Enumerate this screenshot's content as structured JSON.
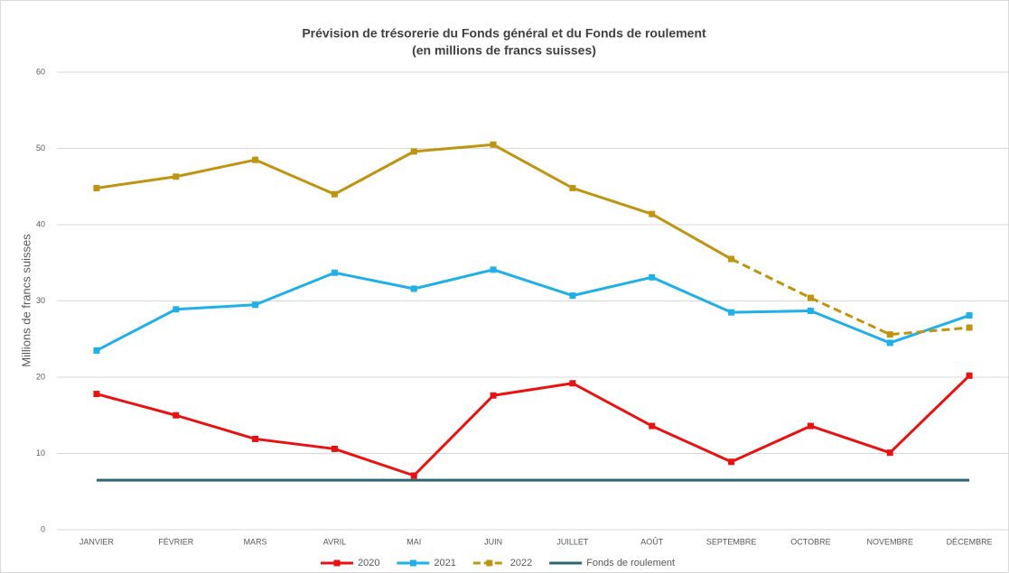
{
  "chart_data": {
    "type": "line",
    "title": "Prévision de trésorerie du Fonds général et du Fonds de roulement",
    "subtitle": "(en millions de francs suisses)",
    "y_label": "Millions de francs suisses",
    "categories": [
      "JANVIER",
      "FÉVRIER",
      "MARS",
      "AVRIL",
      "MAI",
      "JUIN",
      "JUILLET",
      "AOÛT",
      "SEPTEMBRE",
      "OCTOBRE",
      "NOVEMBRE",
      "DÉCEMBRE"
    ],
    "series": [
      {
        "name": "2020",
        "color": "#e81212",
        "marker": "square",
        "values": [
          17.8,
          15.0,
          11.9,
          10.6,
          7.1,
          17.6,
          19.2,
          13.6,
          8.9,
          13.6,
          10.1,
          20.2
        ]
      },
      {
        "name": "2021",
        "color": "#1fb0e8",
        "marker": "square",
        "values": [
          23.5,
          28.9,
          29.5,
          33.7,
          31.6,
          34.1,
          30.7,
          33.1,
          28.5,
          28.7,
          24.5,
          28.1
        ]
      },
      {
        "name": "2022",
        "color": "#bf9410",
        "marker": "square",
        "dash_from": 8,
        "values": [
          44.8,
          46.3,
          48.5,
          44.0,
          49.6,
          50.5,
          44.8,
          41.4,
          35.5,
          30.4,
          25.6,
          26.5
        ]
      },
      {
        "name": "Fonds de roulement",
        "color": "#2e6670",
        "marker": "none",
        "values": [
          6.5,
          6.5,
          6.5,
          6.5,
          6.5,
          6.5,
          6.5,
          6.5,
          6.5,
          6.5,
          6.5,
          6.5
        ]
      }
    ],
    "ylim": [
      0,
      60
    ],
    "yticks": [
      0,
      10,
      20,
      30,
      40,
      50,
      60
    ],
    "grid": true,
    "legend": "bottom"
  }
}
